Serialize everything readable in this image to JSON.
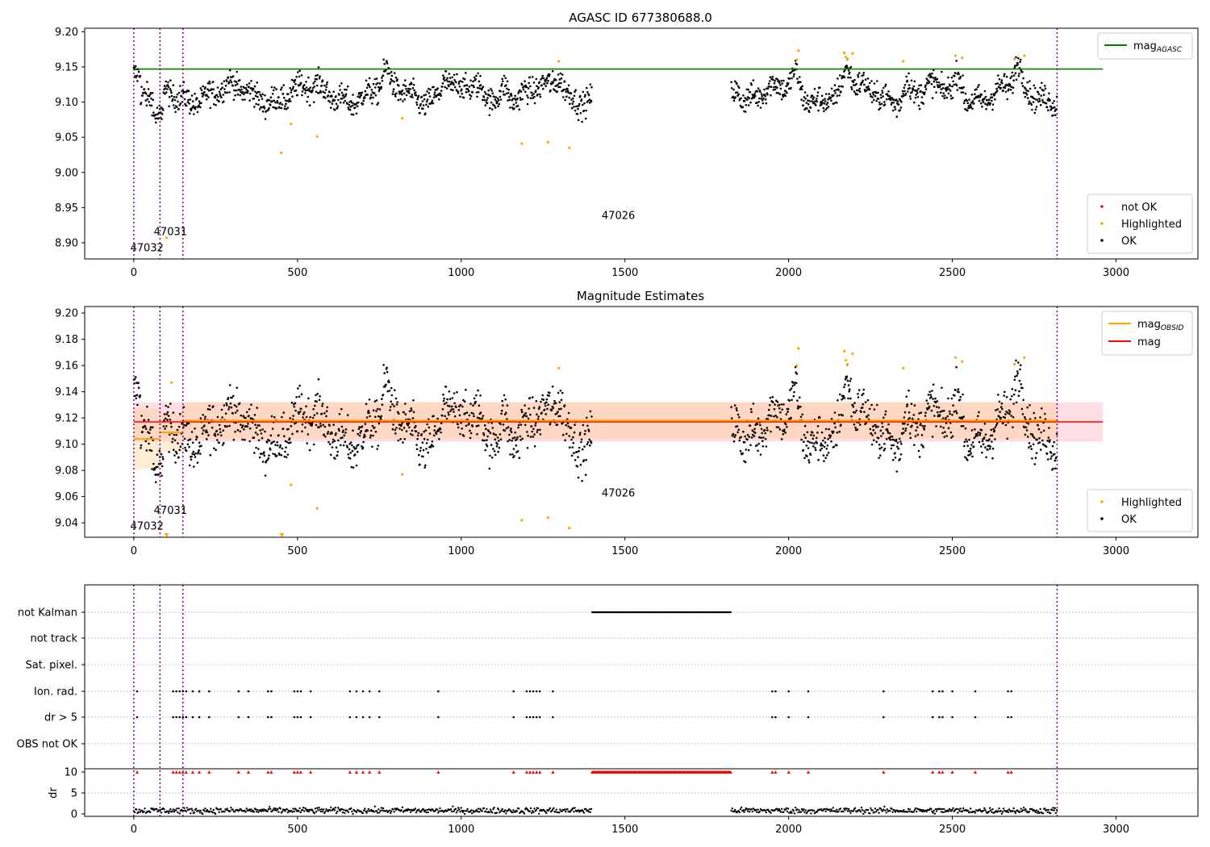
{
  "chart_data": [
    {
      "type": "scatter",
      "title": "AGASC ID 677380688.0",
      "xlim": [
        -150,
        3250
      ],
      "ylim": [
        8.877,
        9.205
      ],
      "xticks": [
        0,
        500,
        1000,
        1500,
        2000,
        2500,
        3000
      ],
      "yticks": [
        8.9,
        8.95,
        9.0,
        9.05,
        9.1,
        9.15,
        9.2
      ],
      "ytick_format": 2,
      "mag_agasc": 9.147,
      "obsid_boundaries": [
        0,
        80,
        150,
        2820
      ],
      "obsid_labels": [
        {
          "text": "47032",
          "x": 40,
          "y": 8.888
        },
        {
          "text": "47031",
          "x": 112,
          "y": 8.911
        },
        {
          "text": "47026",
          "x": 1480,
          "y": 8.934
        }
      ],
      "series": [
        {
          "name": "not OK",
          "color": "#ff0000",
          "points": []
        },
        {
          "name": "Highlighted",
          "color": "#ffa500",
          "points": [
            [
              100,
              8.907
            ],
            [
              450,
              9.028
            ],
            [
              480,
              9.069
            ],
            [
              560,
              9.051
            ],
            [
              820,
              9.077
            ],
            [
              1185,
              9.041
            ],
            [
              1265,
              9.043
            ],
            [
              1330,
              9.035
            ],
            [
              1298,
              9.158
            ],
            [
              2030,
              9.173
            ],
            [
              2025,
              9.16
            ],
            [
              2170,
              9.17
            ],
            [
              2175,
              9.164
            ],
            [
              2180,
              9.161
            ],
            [
              2195,
              9.169
            ],
            [
              2350,
              9.158
            ],
            [
              2510,
              9.166
            ],
            [
              2530,
              9.163
            ],
            [
              2690,
              9.161
            ],
            [
              2720,
              9.166
            ]
          ]
        },
        {
          "name": "OK",
          "color": "#000000",
          "points": "generated"
        }
      ],
      "legend": {
        "position": "lower-right",
        "entries": [
          "not OK",
          "Highlighted",
          "OK"
        ]
      },
      "line_legend": {
        "position": "upper-right",
        "entries": [
          {
            "label": "mag",
            "sub": "AGASC",
            "color": "#008000"
          }
        ]
      }
    },
    {
      "type": "scatter",
      "title": "Magnitude Estimates",
      "xlim": [
        -150,
        3250
      ],
      "ylim": [
        9.029,
        9.205
      ],
      "xticks": [
        0,
        500,
        1000,
        1500,
        2000,
        2500,
        3000
      ],
      "yticks": [
        9.04,
        9.06,
        9.08,
        9.1,
        9.12,
        9.14,
        9.16,
        9.18,
        9.2
      ],
      "ytick_format": 2,
      "mag": 9.117,
      "mag_band": [
        9.102,
        9.132
      ],
      "obsid_mags": [
        {
          "x0": 0,
          "x1": 80,
          "mag": 9.104,
          "lo": 9.081,
          "hi": 9.127
        },
        {
          "x0": 80,
          "x1": 150,
          "mag": 9.109,
          "lo": 9.094,
          "hi": 9.124
        },
        {
          "x0": 150,
          "x1": 2820,
          "mag": 9.118,
          "lo": 9.104,
          "hi": 9.132
        }
      ],
      "obsid_boundaries": [
        0,
        80,
        150,
        2820
      ],
      "obsid_labels": [
        {
          "text": "47032",
          "x": 40,
          "y": 9.035
        },
        {
          "text": "47031",
          "x": 112,
          "y": 9.047
        },
        {
          "text": "47026",
          "x": 1480,
          "y": 9.06
        }
      ],
      "series": [
        {
          "name": "Highlighted",
          "color": "#ffa500",
          "points": [
            [
              480,
              9.069
            ],
            [
              560,
              9.051
            ],
            [
              820,
              9.077
            ],
            [
              1185,
              9.042
            ],
            [
              1265,
              9.044
            ],
            [
              1330,
              9.036
            ],
            [
              1298,
              9.158
            ],
            [
              2030,
              9.173
            ],
            [
              2025,
              9.16
            ],
            [
              2170,
              9.171
            ],
            [
              2175,
              9.164
            ],
            [
              2180,
              9.161
            ],
            [
              2195,
              9.169
            ],
            [
              2350,
              9.158
            ],
            [
              2510,
              9.166
            ],
            [
              2530,
              9.163
            ],
            [
              2690,
              9.161
            ],
            [
              2720,
              9.166
            ],
            [
              115,
              9.147
            ]
          ]
        },
        {
          "name": "OK",
          "color": "#000000",
          "points": "generated"
        }
      ],
      "legend": {
        "position": "lower-right",
        "entries": [
          "Highlighted",
          "OK"
        ]
      },
      "line_legend": {
        "position": "upper-right",
        "entries": [
          {
            "label": "mag",
            "sub": "OBSID",
            "color": "#ffa500"
          },
          {
            "label": "mag",
            "sub": "",
            "color": "#ff0000"
          }
        ]
      }
    },
    {
      "type": "scatter",
      "title": "",
      "xlim": [
        -150,
        3250
      ],
      "xticks": [
        0,
        500,
        1000,
        1500,
        2000,
        2500,
        3000
      ],
      "flag_rows": [
        "not Kalman",
        "not track",
        "Sat. pixel.",
        "Ion. rad.",
        "dr > 5",
        "OBS not OK"
      ],
      "flag_events": {
        "not Kalman": {
          "range": [
            1400,
            1825
          ]
        },
        "Ion. rad.": {
          "x": [
            10,
            120,
            130,
            140,
            150,
            160,
            180,
            200,
            230,
            320,
            350,
            410,
            420,
            490,
            500,
            510,
            540,
            660,
            680,
            700,
            720,
            750,
            930,
            1160,
            1200,
            1210,
            1220,
            1230,
            1240,
            1280,
            1950,
            1960,
            2000,
            2060,
            2290,
            2440,
            2460,
            2470,
            2500,
            2570,
            2670,
            2680
          ]
        },
        "dr > 5": {
          "x": [
            10,
            120,
            130,
            140,
            150,
            160,
            180,
            200,
            230,
            320,
            350,
            410,
            420,
            490,
            500,
            510,
            540,
            660,
            680,
            700,
            720,
            750,
            930,
            1160,
            1200,
            1210,
            1220,
            1230,
            1240,
            1280,
            1950,
            1960,
            2000,
            2060,
            2290,
            2440,
            2460,
            2470,
            2500,
            2570,
            2670,
            2680
          ]
        }
      },
      "dr_axis": {
        "ylabel": "dr",
        "yticks": [
          0,
          5,
          10
        ],
        "clip": 10
      },
      "obsid_boundaries": [
        0,
        80,
        150,
        2820
      ]
    }
  ]
}
